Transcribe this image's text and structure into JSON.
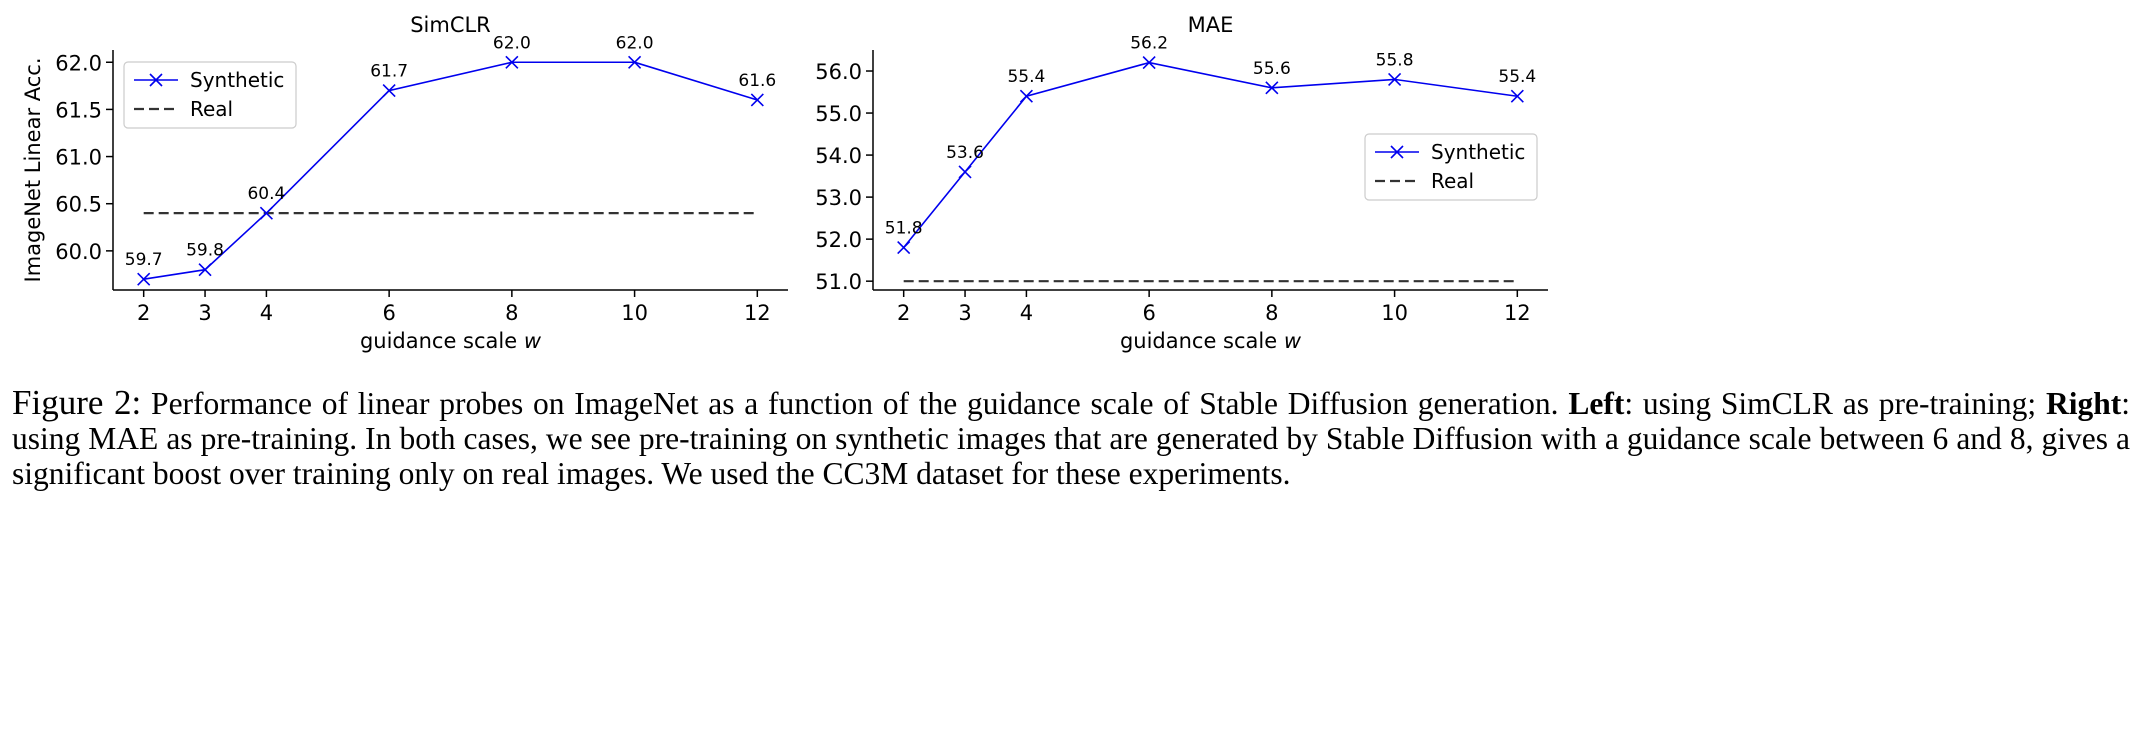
{
  "chart_data": [
    {
      "type": "line",
      "title": "SimCLR",
      "xlabel": "guidance scale",
      "xlabel_var": "w",
      "ylabel": "ImageNet Linear Acc.",
      "x": [
        2,
        3,
        4,
        6,
        8,
        10,
        12
      ],
      "xticks": [
        "2",
        "3",
        "4",
        "6",
        "8",
        "10",
        "12"
      ],
      "yticks": [
        60.0,
        60.5,
        61.0,
        61.5,
        62.0
      ],
      "ytick_labels": [
        "60.0",
        "60.5",
        "61.0",
        "61.5",
        "62.0"
      ],
      "xlim": [
        1.5,
        12.5
      ],
      "ylim": [
        59.585,
        62.13
      ],
      "series": [
        {
          "name": "Synthetic",
          "values": [
            59.7,
            59.8,
            60.4,
            61.7,
            62.0,
            62.0,
            61.6
          ],
          "labels": [
            "59.7",
            "59.8",
            "60.4",
            "61.7",
            "62.0",
            "62.0",
            "61.6"
          ],
          "color": "#0000ee",
          "style": "solid",
          "marker": "x"
        },
        {
          "name": "Real",
          "values": [
            60.4,
            60.4
          ],
          "x": [
            2,
            12
          ],
          "color": "#333333",
          "style": "dashed"
        }
      ],
      "legend": "top-left",
      "grid": false
    },
    {
      "type": "line",
      "title": "MAE",
      "xlabel": "guidance scale",
      "xlabel_var": "w",
      "ylabel": "",
      "x": [
        2,
        3,
        4,
        6,
        8,
        10,
        12
      ],
      "xticks": [
        "2",
        "3",
        "4",
        "6",
        "8",
        "10",
        "12"
      ],
      "yticks": [
        51.0,
        52.0,
        53.0,
        54.0,
        55.0,
        56.0
      ],
      "ytick_labels": [
        "51.0",
        "52.0",
        "53.0",
        "54.0",
        "55.0",
        "56.0"
      ],
      "xlim": [
        1.5,
        12.5
      ],
      "ylim": [
        50.79,
        56.5
      ],
      "series": [
        {
          "name": "Synthetic",
          "values": [
            51.8,
            53.6,
            55.4,
            56.2,
            55.6,
            55.8,
            55.4
          ],
          "labels": [
            "51.8",
            "53.6",
            "55.4",
            "56.2",
            "55.6",
            "55.8",
            "55.4"
          ],
          "color": "#0000ee",
          "style": "solid",
          "marker": "x"
        },
        {
          "name": "Real",
          "values": [
            51.0,
            51.0
          ],
          "x": [
            2,
            12
          ],
          "color": "#333333",
          "style": "dashed"
        }
      ],
      "legend": "center-right",
      "grid": false
    }
  ],
  "caption": {
    "label": "Figure 2:",
    "part1": " Performance of linear probes on ImageNet as a function of the guidance scale of Stable Diffusion generation. ",
    "left_bold": "Left",
    "part2": ": using SimCLR as pre-training; ",
    "right_bold": "Right",
    "part3": ": using MAE as pre-training. In both cases, we see pre-training on synthetic images that are generated by Stable Diffusion with a guidance scale between 6 and 8, gives a significant boost over training only on real images. We used the CC3M dataset for these experiments."
  }
}
